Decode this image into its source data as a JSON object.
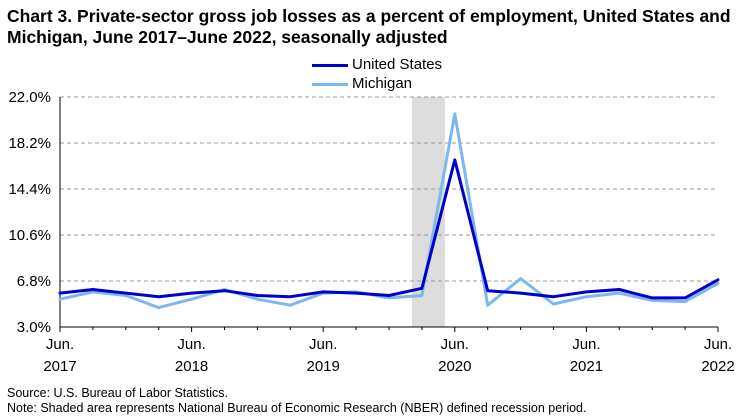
{
  "title": "Chart 3. Private-sector gross job losses as a percent of employment, United States and Michigan, June 2017–June 2022, seasonally adjusted",
  "legend": [
    {
      "label": "United States",
      "color": "#0000cc"
    },
    {
      "label": "Michigan",
      "color": "#7ab8ee"
    }
  ],
  "notes": {
    "source": "Source: U.S. Bureau of Labor Statistics.",
    "note": "Note: Shaded area represents National Bureau of Economic Research (NBER) defined  recession period."
  },
  "chart_data": {
    "type": "line",
    "title": "Chart 3. Private-sector gross job losses as a percent of employment, United States and Michigan, June 2017–June 2022, seasonally adjusted",
    "xlabel": "",
    "ylabel": "",
    "y_ticks": [
      "3.0%",
      "6.8%",
      "10.6%",
      "14.4%",
      "18.2%",
      "22.0%"
    ],
    "y_tick_values": [
      3.0,
      6.8,
      10.6,
      14.4,
      18.2,
      22.0
    ],
    "ylim": [
      3.0,
      22.0
    ],
    "x_tick_labels": [
      {
        "line1": "Jun.",
        "line2": "2017"
      },
      {
        "line1": "Jun.",
        "line2": "2018"
      },
      {
        "line1": "Jun.",
        "line2": "2019"
      },
      {
        "line1": "Jun.",
        "line2": "2020"
      },
      {
        "line1": "Jun.",
        "line2": "2021"
      },
      {
        "line1": "Jun.",
        "line2": "2022"
      }
    ],
    "x": [
      "Jun. 2017",
      "Sep. 2017",
      "Dec. 2017",
      "Mar. 2018",
      "Jun. 2018",
      "Sep. 2018",
      "Dec. 2018",
      "Mar. 2019",
      "Jun. 2019",
      "Sep. 2019",
      "Dec. 2019",
      "Mar. 2020",
      "Jun. 2020",
      "Sep. 2020",
      "Dec. 2020",
      "Mar. 2021",
      "Jun. 2021",
      "Sep. 2021",
      "Dec. 2021",
      "Mar. 2022",
      "Jun. 2022"
    ],
    "series": [
      {
        "name": "United States",
        "color": "#0000cc",
        "values": [
          5.8,
          6.1,
          5.8,
          5.5,
          5.8,
          6.0,
          5.6,
          5.5,
          5.9,
          5.8,
          5.6,
          6.2,
          16.8,
          6.0,
          5.8,
          5.5,
          5.9,
          6.1,
          5.4,
          5.4,
          6.9
        ]
      },
      {
        "name": "Michigan",
        "color": "#7ab8ee",
        "values": [
          5.3,
          5.9,
          5.6,
          4.6,
          5.3,
          6.1,
          5.3,
          4.8,
          5.8,
          5.9,
          5.4,
          5.6,
          20.6,
          4.8,
          7.0,
          4.9,
          5.5,
          5.8,
          5.2,
          5.1,
          6.6
        ]
      }
    ],
    "recession_shading": {
      "start": "Mar. 2020",
      "end": "Jun. 2020"
    },
    "grid": true,
    "legend_position": "top-center"
  }
}
